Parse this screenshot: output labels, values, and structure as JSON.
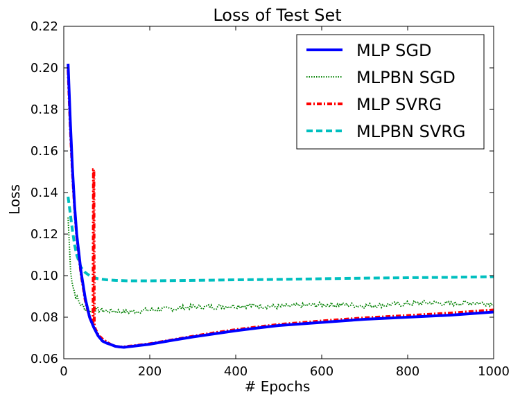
{
  "chart_data": {
    "type": "line",
    "title": "Loss of Test Set",
    "xlabel": "# Epochs",
    "ylabel": "Loss",
    "xlim": [
      0,
      1000
    ],
    "ylim": [
      0.06,
      0.22
    ],
    "xticks": [
      0,
      200,
      400,
      600,
      800,
      1000
    ],
    "yticks": [
      0.06,
      0.08,
      0.1,
      0.12,
      0.14,
      0.16,
      0.18,
      0.2,
      0.22
    ],
    "xtick_labels": [
      "0",
      "200",
      "400",
      "600",
      "800",
      "1000"
    ],
    "ytick_labels": [
      "0.06",
      "0.08",
      "0.10",
      "0.12",
      "0.14",
      "0.16",
      "0.18",
      "0.20",
      "0.22"
    ],
    "grid": false,
    "legend_position": "top-right",
    "series": [
      {
        "name": "MLP SGD",
        "color": "#0000ff",
        "style": "solid",
        "x": [
          10,
          15,
          20,
          25,
          30,
          40,
          50,
          60,
          70,
          80,
          90,
          100,
          110,
          120,
          130,
          140,
          150,
          160,
          180,
          200,
          250,
          300,
          350,
          400,
          450,
          500,
          600,
          700,
          800,
          900,
          1000
        ],
        "y": [
          0.202,
          0.175,
          0.152,
          0.134,
          0.12,
          0.102,
          0.089,
          0.08,
          0.075,
          0.071,
          0.0685,
          0.0675,
          0.0668,
          0.066,
          0.0657,
          0.0655,
          0.0658,
          0.066,
          0.0665,
          0.067,
          0.0688,
          0.0705,
          0.072,
          0.0735,
          0.0748,
          0.076,
          0.0775,
          0.079,
          0.08,
          0.081,
          0.0825
        ]
      },
      {
        "name": "MLPBN SGD",
        "color": "#008000",
        "style": "dotted",
        "x": [
          10,
          15,
          20,
          25,
          30,
          40,
          50,
          60,
          70,
          80,
          100,
          120,
          150,
          200,
          250,
          300,
          350,
          400,
          450,
          500,
          550,
          600,
          650,
          700,
          750,
          800,
          850,
          900,
          950,
          1000
        ],
        "y": [
          0.128,
          0.105,
          0.096,
          0.092,
          0.089,
          0.086,
          0.084,
          0.083,
          0.0835,
          0.0835,
          0.083,
          0.083,
          0.0825,
          0.0835,
          0.084,
          0.085,
          0.085,
          0.0855,
          0.0855,
          0.085,
          0.0855,
          0.086,
          0.086,
          0.0855,
          0.086,
          0.0865,
          0.087,
          0.0865,
          0.087,
          0.0865
        ],
        "noise_amplitude": 0.0012
      },
      {
        "name": "MLP SVRG",
        "color": "#ff0000",
        "style": "dash-dot",
        "x": [
          10,
          15,
          20,
          25,
          30,
          40,
          50,
          60,
          68,
          69,
          70,
          71,
          72,
          80,
          90,
          100,
          110,
          120,
          130,
          140,
          150,
          160,
          180,
          200,
          250,
          300,
          350,
          400,
          450,
          500,
          600,
          700,
          800,
          900,
          1000
        ],
        "y": [
          0.199,
          0.172,
          0.15,
          0.133,
          0.119,
          0.101,
          0.088,
          0.08,
          0.076,
          0.151,
          0.151,
          0.076,
          0.075,
          0.0715,
          0.0695,
          0.068,
          0.0668,
          0.066,
          0.0657,
          0.0657,
          0.066,
          0.0662,
          0.0667,
          0.0672,
          0.069,
          0.0708,
          0.0725,
          0.074,
          0.0753,
          0.0765,
          0.0782,
          0.0797,
          0.0808,
          0.082,
          0.0835
        ]
      },
      {
        "name": "MLPBN SVRG",
        "color": "#00bfbf",
        "style": "dashed",
        "x": [
          10,
          15,
          20,
          25,
          30,
          40,
          50,
          60,
          70,
          80,
          100,
          120,
          150,
          200,
          300,
          400,
          500,
          600,
          700,
          800,
          900,
          1000
        ],
        "y": [
          0.138,
          0.13,
          0.122,
          0.115,
          0.11,
          0.104,
          0.1015,
          0.1,
          0.099,
          0.0985,
          0.098,
          0.0977,
          0.0975,
          0.0975,
          0.0977,
          0.098,
          0.0982,
          0.0985,
          0.0988,
          0.099,
          0.0992,
          0.0995
        ]
      }
    ]
  }
}
